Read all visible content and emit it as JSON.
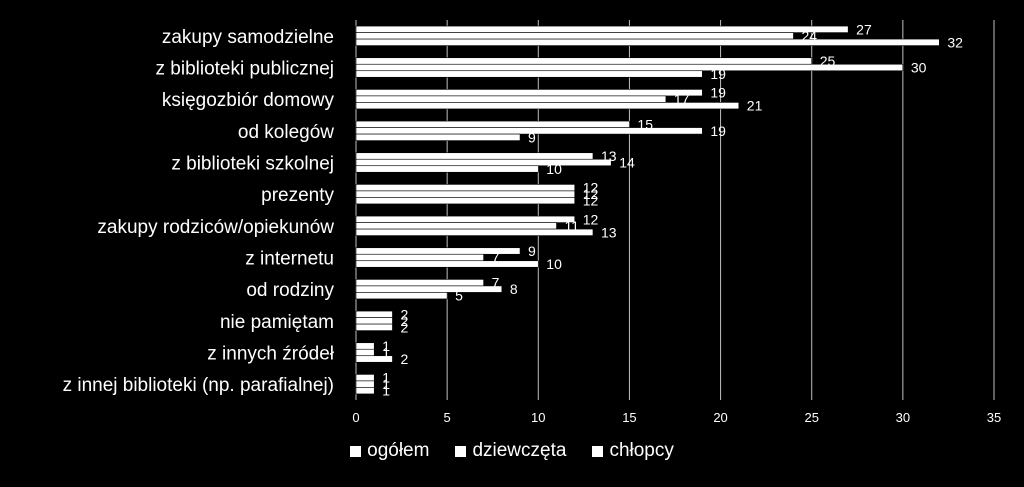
{
  "chart_data": {
    "type": "bar",
    "orientation": "horizontal",
    "categories": [
      "zakupy samodzielne",
      "z biblioteki publicznej",
      "księgozbiór domowy",
      "od kolegów",
      "z biblioteki szkolnej",
      "prezenty",
      "zakupy rodziców/opiekunów",
      "z internetu",
      "od rodziny",
      "nie pamiętam",
      "z innych źródeł",
      "z innej biblioteki (np. parafialnej)"
    ],
    "series": [
      {
        "name": "ogółem",
        "values": [
          27,
          25,
          19,
          15,
          13,
          12,
          12,
          9,
          7,
          2,
          1,
          1
        ]
      },
      {
        "name": "dziewczęta",
        "values": [
          24,
          30,
          17,
          19,
          14,
          12,
          11,
          7,
          8,
          2,
          1,
          1
        ]
      },
      {
        "name": "chłopcy",
        "values": [
          32,
          19,
          21,
          9,
          10,
          12,
          13,
          10,
          5,
          2,
          2,
          1
        ]
      }
    ],
    "xlim": [
      0,
      35
    ],
    "x_ticks": [
      0,
      5,
      10,
      15,
      20,
      25,
      30,
      35
    ],
    "grid": true,
    "legend_position": "bottom",
    "colors": {
      "background": "#000000",
      "bars": "#ffffff",
      "gridlines": "#bfbfbf",
      "text": "#ffffff"
    }
  }
}
